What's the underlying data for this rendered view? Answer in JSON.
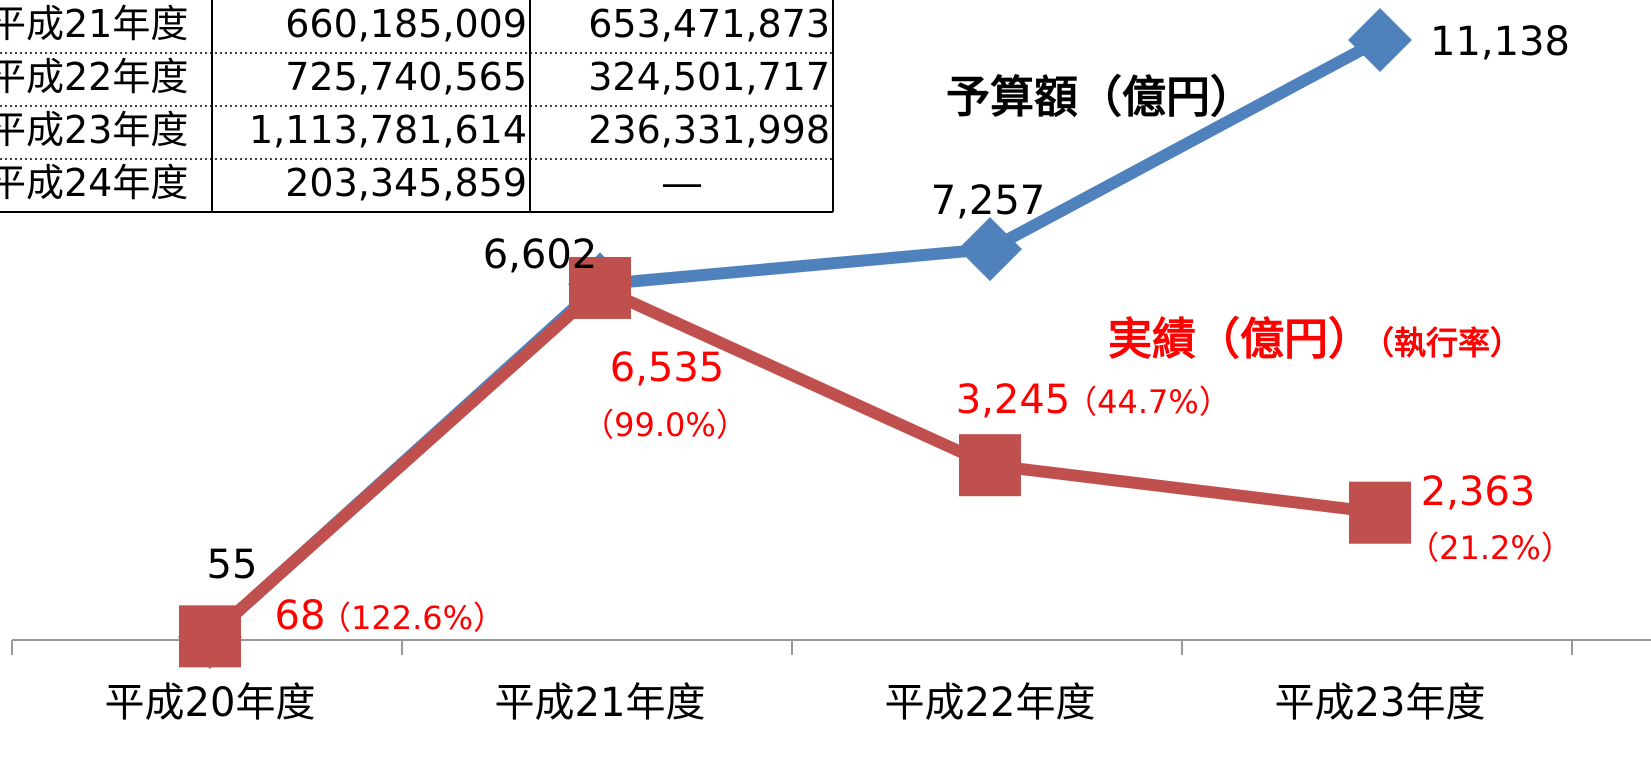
{
  "chart_data": {
    "type": "line",
    "categories": [
      "平成20年度",
      "平成21年度",
      "平成22年度",
      "平成23年度"
    ],
    "series": [
      {
        "name": "予算額（億円）",
        "color": "#4f81bd",
        "marker": "diamond",
        "values": [
          55,
          6602,
          7257,
          11138
        ],
        "value_labels": [
          "55",
          "6,602",
          "7,257",
          "11,138"
        ]
      },
      {
        "name": "実績（億円）",
        "color": "#c0504d",
        "marker": "square",
        "values": [
          68,
          6535,
          3245,
          2363
        ],
        "value_labels": [
          "68",
          "6,535",
          "3,245",
          "2,363"
        ],
        "rate_labels": [
          "（122.6%）",
          "（99.0%）",
          "（44.7%）",
          "（21.2%）"
        ]
      }
    ],
    "rate_title": "（執行率）"
  },
  "table": {
    "rows": [
      [
        "平成21年度",
        "660,185,009",
        "653,471,873"
      ],
      [
        "平成22年度",
        "725,740,565",
        "324,501,717"
      ],
      [
        "平成23年度",
        "1,113,781,614",
        "236,331,998"
      ],
      [
        "平成24年度",
        "203,345,859",
        "―"
      ]
    ]
  }
}
